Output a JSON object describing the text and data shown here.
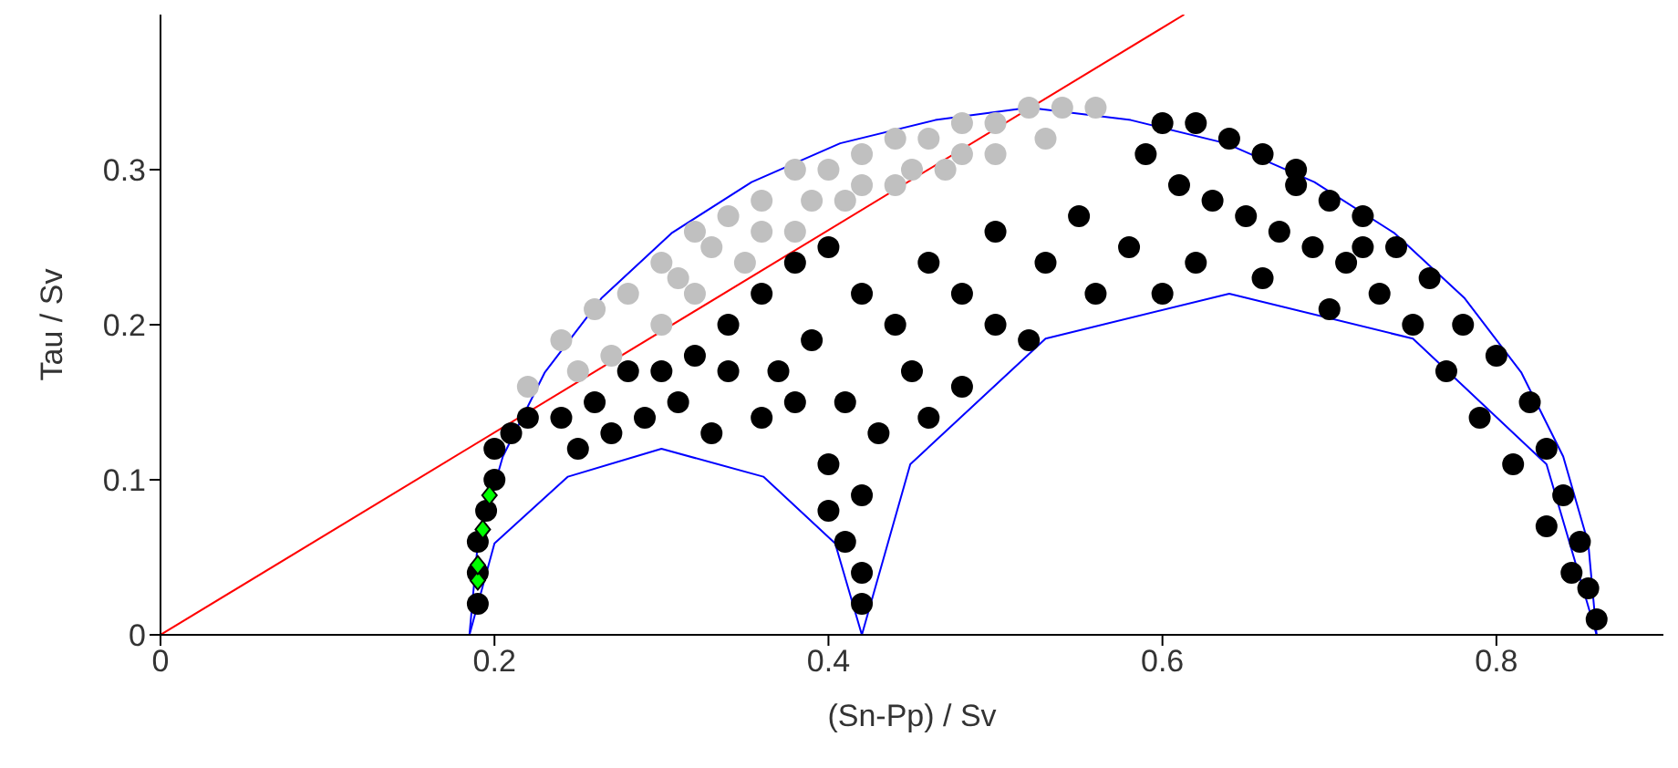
{
  "chart_data": {
    "type": "scatter",
    "xlabel": "(Sn-Pp) / Sv",
    "ylabel": "Tau / Sv",
    "xlim": [
      0,
      0.9
    ],
    "ylim": [
      0,
      0.4
    ],
    "xticks": [
      0,
      0.2,
      0.4,
      0.6,
      0.8
    ],
    "yticks": [
      0,
      0.1,
      0.2,
      0.3
    ],
    "grid": false,
    "series": [
      {
        "type": "line",
        "color": "#0000ff",
        "marker": "none",
        "line_style": "solid",
        "x": [
          0.185,
          0.19,
          0.205,
          0.23,
          0.264,
          0.306,
          0.354,
          0.407,
          0.464,
          0.52,
          0.581,
          0.638,
          0.691,
          0.739,
          0.781,
          0.815,
          0.84,
          0.855,
          0.86
        ],
        "values": [
          0,
          0.059,
          0.115,
          0.169,
          0.217,
          0.259,
          0.292,
          0.317,
          0.332,
          0.34,
          0.332,
          0.317,
          0.292,
          0.259,
          0.217,
          0.169,
          0.115,
          0.059,
          0
        ]
      },
      {
        "type": "line",
        "color": "#0000ff",
        "marker": "none",
        "line_style": "solid",
        "x": [
          0.185,
          0.2,
          0.244,
          0.3,
          0.361,
          0.404,
          0.42
        ],
        "values": [
          0,
          0.059,
          0.102,
          0.12,
          0.102,
          0.059,
          0
        ]
      },
      {
        "type": "line",
        "color": "#0000ff",
        "marker": "none",
        "line_style": "solid",
        "x": [
          0.42,
          0.449,
          0.53,
          0.64,
          0.75,
          0.83,
          0.86
        ],
        "values": [
          0,
          0.11,
          0.191,
          0.22,
          0.191,
          0.11,
          0
        ]
      },
      {
        "type": "scatter",
        "color": "#000000",
        "marker": "circle",
        "x": [
          0.86,
          0.855,
          0.85,
          0.84,
          0.83,
          0.82,
          0.8,
          0.78,
          0.76,
          0.74,
          0.72,
          0.7,
          0.68,
          0.66,
          0.64,
          0.62,
          0.6,
          0.59,
          0.61,
          0.63,
          0.65,
          0.67,
          0.69,
          0.71,
          0.73,
          0.75,
          0.77,
          0.79,
          0.81,
          0.83,
          0.845,
          0.66,
          0.7,
          0.62,
          0.58,
          0.6,
          0.56,
          0.68,
          0.72,
          0.55,
          0.53,
          0.5,
          0.48,
          0.46,
          0.44,
          0.42,
          0.4,
          0.38,
          0.36,
          0.34,
          0.39,
          0.45,
          0.5,
          0.52,
          0.41,
          0.43,
          0.38,
          0.36,
          0.4,
          0.42,
          0.41,
          0.42,
          0.42,
          0.4,
          0.46,
          0.48,
          0.37,
          0.2,
          0.21,
          0.22,
          0.24,
          0.26,
          0.28,
          0.3,
          0.32,
          0.34,
          0.31,
          0.29,
          0.27,
          0.25,
          0.33,
          0.2,
          0.195,
          0.19,
          0.19,
          0.19
        ],
        "values": [
          0.01,
          0.03,
          0.06,
          0.09,
          0.12,
          0.15,
          0.18,
          0.2,
          0.23,
          0.25,
          0.27,
          0.28,
          0.3,
          0.31,
          0.32,
          0.33,
          0.33,
          0.31,
          0.29,
          0.28,
          0.27,
          0.26,
          0.25,
          0.24,
          0.22,
          0.2,
          0.17,
          0.14,
          0.11,
          0.07,
          0.04,
          0.23,
          0.21,
          0.24,
          0.25,
          0.22,
          0.22,
          0.29,
          0.25,
          0.27,
          0.24,
          0.26,
          0.22,
          0.24,
          0.2,
          0.22,
          0.25,
          0.24,
          0.22,
          0.2,
          0.19,
          0.17,
          0.2,
          0.19,
          0.15,
          0.13,
          0.15,
          0.14,
          0.11,
          0.09,
          0.06,
          0.04,
          0.02,
          0.08,
          0.14,
          0.16,
          0.17,
          0.12,
          0.13,
          0.14,
          0.14,
          0.15,
          0.17,
          0.17,
          0.18,
          0.17,
          0.15,
          0.14,
          0.13,
          0.12,
          0.13,
          0.1,
          0.08,
          0.06,
          0.04,
          0.02
        ]
      },
      {
        "type": "scatter",
        "color": "#c0c0c0",
        "marker": "circle",
        "x": [
          0.22,
          0.24,
          0.26,
          0.28,
          0.3,
          0.32,
          0.34,
          0.36,
          0.38,
          0.4,
          0.42,
          0.44,
          0.46,
          0.48,
          0.5,
          0.52,
          0.54,
          0.56,
          0.27,
          0.3,
          0.32,
          0.35,
          0.38,
          0.41,
          0.44,
          0.47,
          0.5,
          0.53,
          0.33,
          0.36,
          0.39,
          0.42,
          0.45,
          0.48,
          0.31,
          0.25
        ],
        "values": [
          0.16,
          0.19,
          0.21,
          0.22,
          0.24,
          0.26,
          0.27,
          0.28,
          0.3,
          0.3,
          0.31,
          0.32,
          0.32,
          0.33,
          0.33,
          0.34,
          0.34,
          0.34,
          0.18,
          0.2,
          0.22,
          0.24,
          0.26,
          0.28,
          0.29,
          0.3,
          0.31,
          0.32,
          0.25,
          0.26,
          0.28,
          0.29,
          0.3,
          0.31,
          0.23,
          0.17
        ]
      },
      {
        "type": "scatter",
        "color": "#00ff00",
        "marker": "diamond",
        "x": [
          0.19,
          0.19,
          0.193,
          0.197
        ],
        "values": [
          0.035,
          0.045,
          0.068,
          0.09
        ]
      },
      {
        "type": "line",
        "color": "#ff0000",
        "marker": "none",
        "line_style": "solid",
        "x": [
          0,
          0.613
        ],
        "values": [
          0,
          0.4
        ]
      }
    ]
  }
}
